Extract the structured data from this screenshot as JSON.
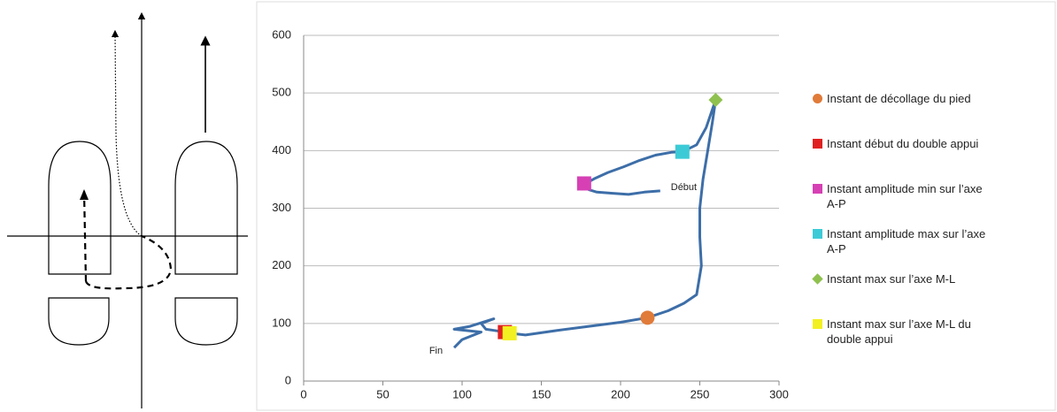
{
  "chart_data": {
    "type": "line",
    "xlim": [
      0,
      300
    ],
    "xticks": [
      0,
      50,
      100,
      150,
      200,
      250,
      300
    ],
    "ylim": [
      0,
      600
    ],
    "yticks": [
      0,
      100,
      200,
      300,
      400,
      500,
      600
    ],
    "grid": true,
    "series": [
      {
        "color": "#3d6ea8",
        "x": [
          225,
          215,
          205,
          195,
          185,
          180,
          178,
          184,
          192,
          202,
          212,
          222,
          232,
          239,
          248,
          254,
          260,
          258,
          255,
          252,
          250,
          250,
          251,
          248,
          240,
          230,
          217,
          200,
          180,
          160,
          140,
          130,
          127,
          120,
          115,
          112,
          120,
          105,
          95,
          112,
          100,
          95
        ],
        "values": [
          330,
          328,
          324,
          326,
          328,
          332,
          343,
          352,
          362,
          372,
          383,
          392,
          397,
          398,
          410,
          440,
          488,
          450,
          400,
          350,
          300,
          250,
          200,
          150,
          135,
          122,
          110,
          102,
          95,
          88,
          80,
          83,
          85,
          88,
          90,
          100,
          108,
          95,
          90,
          85,
          72,
          58
        ]
      },
      {
        "name": "Instant de décollage du pied",
        "color": "#e07b39",
        "marker": "circle",
        "x": [
          217
        ],
        "values": [
          110
        ]
      },
      {
        "name": "Instant début du double appui",
        "color": "#e02020",
        "marker": "square",
        "x": [
          127
        ],
        "values": [
          85
        ]
      },
      {
        "name": "Instant amplitude min sur l’axe A-P",
        "color": "#d640b4",
        "marker": "square",
        "x": [
          177
        ],
        "values": [
          343
        ]
      },
      {
        "name": "Instant amplitude max sur l’axe A-P",
        "color": "#3ccbd6",
        "marker": "square",
        "x": [
          239
        ],
        "values": [
          398
        ]
      },
      {
        "name": "Instant max sur l’axe M-L",
        "color": "#8fc14f",
        "marker": "diamond",
        "x": [
          260
        ],
        "values": [
          488
        ]
      },
      {
        "name": "Instant max sur l’axe M-L du double appui",
        "color": "#f2f020",
        "marker": "square",
        "x": [
          130
        ],
        "values": [
          83
        ]
      }
    ],
    "annotations": [
      "Début",
      "Fin"
    ]
  }
}
